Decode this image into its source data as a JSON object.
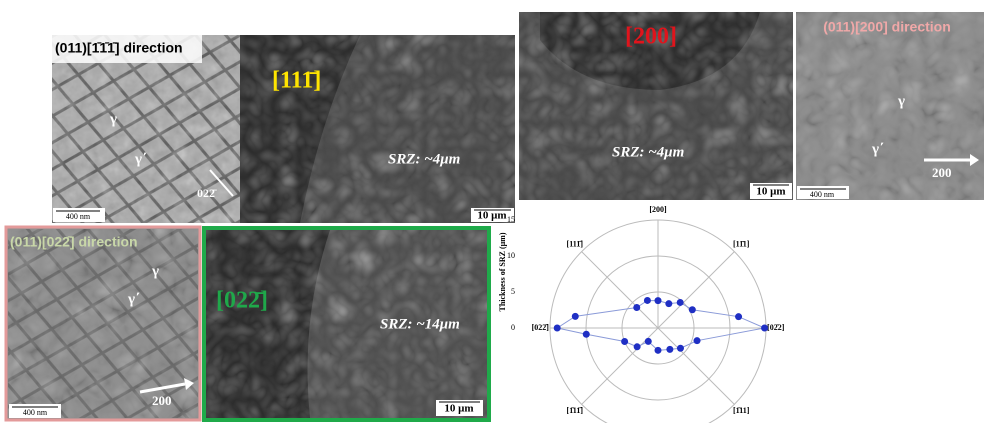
{
  "panels": [
    {
      "label": "(011)[1̄1̄1̄] direction",
      "g1": "γ",
      "g2": "γ΄",
      "dir": "022̄",
      "scale": "400 nm"
    },
    {
      "label": "[111̄]",
      "srz": "SRZ: ~4μm",
      "scale": "10 μm"
    },
    {
      "label": "[200]",
      "srz": "SRZ: ~4μm",
      "scale": "10 μm"
    },
    {
      "label": "(011)[200] direction",
      "g1": "γ",
      "g2": "γ΄",
      "dir": "200",
      "scale": "400 nm"
    },
    {
      "label": "(011)[022̄] direction",
      "g1": "γ",
      "g2": "γ΄",
      "dir": "200",
      "scale": "400 nm"
    },
    {
      "label": "[022̄]",
      "srz": "SRZ: ~14μm",
      "scale": "10 μm"
    }
  ],
  "chart_data": {
    "type": "polar",
    "ylabel": "Thickness of SRZ (μm)",
    "rlim": [
      0,
      15
    ],
    "rticks": [
      0,
      5,
      10,
      15
    ],
    "grid": true,
    "angles": [
      {
        "value": 90,
        "label": "[200]"
      },
      {
        "value": 45,
        "label": "[11̄1]"
      },
      {
        "value": 135,
        "label": "[111̄]"
      },
      {
        "value": 0,
        "label": "[02̄2]"
      },
      {
        "value": 180,
        "label": "[022̄]"
      },
      {
        "value": 225,
        "label": "[1̄11̄]"
      },
      {
        "value": 315,
        "label": "[1̄11]"
      }
    ],
    "series": [
      {
        "color": "#1f2fc4",
        "theta": [
          0,
          8,
          28,
          49,
          66,
          90,
          111,
          136,
          172,
          180,
          185,
          202,
          222,
          234,
          270,
          299,
          318,
          342
        ],
        "r": [
          14.8,
          11.3,
          5.4,
          4.7,
          3.7,
          3.8,
          4.1,
          4.1,
          11.6,
          14,
          10,
          5,
          3.9,
          2.3,
          3.1,
          3.4,
          4.2,
          5.7
        ]
      }
    ]
  }
}
